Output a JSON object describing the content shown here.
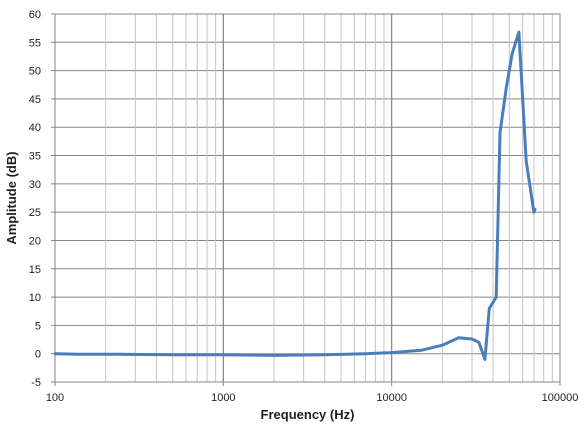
{
  "chart_data": {
    "type": "line",
    "title": "",
    "xlabel": "Frequency (Hz)",
    "ylabel": "Amplitude (dB)",
    "x_scale": "log",
    "xlim": [
      100,
      100000
    ],
    "ylim": [
      -5,
      60
    ],
    "x_ticks": [
      "100",
      "1000",
      "10000",
      "100000"
    ],
    "y_ticks": [
      "-5",
      "0",
      "5",
      "10",
      "15",
      "20",
      "25",
      "30",
      "35",
      "40",
      "45",
      "50",
      "55",
      "60"
    ],
    "grid": true,
    "legend": "none",
    "series": [
      {
        "color": "#4a7ebb",
        "points": [
          [
            100,
            0
          ],
          [
            140,
            -0.1
          ],
          [
            250,
            -0.1
          ],
          [
            500,
            -0.2
          ],
          [
            1000,
            -0.2
          ],
          [
            2000,
            -0.3
          ],
          [
            4000,
            -0.2
          ],
          [
            7000,
            0
          ],
          [
            10000,
            0.2
          ],
          [
            15000,
            0.6
          ],
          [
            20000,
            1.5
          ],
          [
            25000,
            2.8
          ],
          [
            30000,
            2.6
          ],
          [
            33000,
            2.0
          ],
          [
            35800,
            -1.0
          ],
          [
            38000,
            8
          ],
          [
            41800,
            10
          ],
          [
            44000,
            39
          ],
          [
            48000,
            47
          ],
          [
            52000,
            53
          ],
          [
            57000,
            56.8
          ],
          [
            63000,
            34
          ],
          [
            70000,
            25
          ],
          [
            71000,
            25.5
          ]
        ]
      }
    ]
  }
}
